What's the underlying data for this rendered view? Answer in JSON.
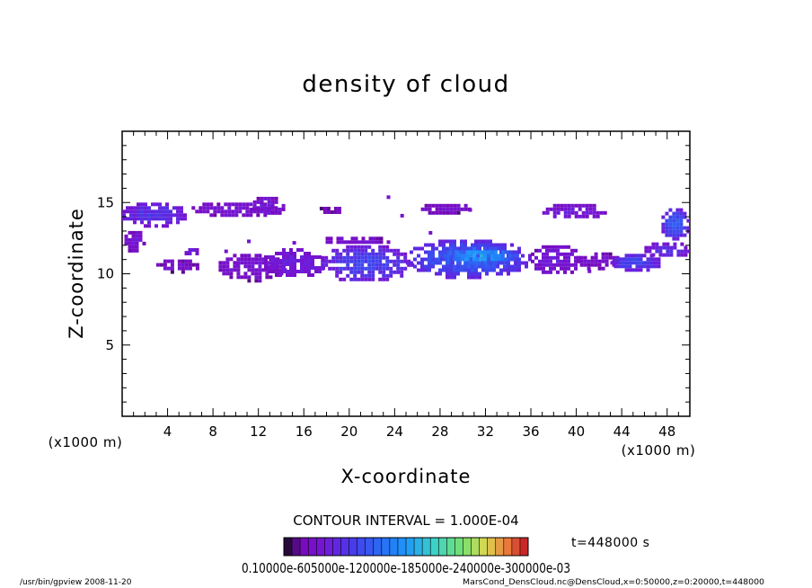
{
  "chart_data": {
    "type": "heatmap",
    "title": "density of cloud",
    "xlabel": "X-coordinate",
    "ylabel": "Z-coordinate",
    "x_unit": "(x1000 m)",
    "xlim": [
      0,
      50
    ],
    "ylim": [
      0,
      20
    ],
    "x_ticks": [
      4,
      8,
      12,
      16,
      20,
      24,
      28,
      32,
      36,
      40,
      44,
      48
    ],
    "y_ticks": [
      5,
      10,
      15
    ],
    "grid": false,
    "contour_interval": "CONTOUR INTERVAL = 1.000E-04",
    "time_label": "t=448000 s",
    "colorbar_labels": "0.10000e-605000e-120000e-185000e-240000e-300000e-03",
    "colorbar_levels": 30,
    "regions": [
      {
        "x": [
          0.0,
          5.8
        ],
        "z": [
          13.3,
          15.0
        ],
        "intensity": 0.22
      },
      {
        "x": [
          5.8,
          14.0
        ],
        "z": [
          14.0,
          15.0
        ],
        "intensity": 0.12
      },
      {
        "x": [
          11.2,
          14.4
        ],
        "z": [
          14.1,
          15.4
        ],
        "intensity": 0.14
      },
      {
        "x": [
          0.2,
          2.0
        ],
        "z": [
          11.5,
          13.0
        ],
        "intensity": 0.12
      },
      {
        "x": [
          3.0,
          6.8
        ],
        "z": [
          10.1,
          11.0
        ],
        "intensity": 0.1
      },
      {
        "x": [
          5.5,
          7.0
        ],
        "z": [
          11.3,
          11.8
        ],
        "intensity": 0.16
      },
      {
        "x": [
          8.5,
          14.5
        ],
        "z": [
          9.5,
          11.4
        ],
        "intensity": 0.12
      },
      {
        "x": [
          12.5,
          18.0
        ],
        "z": [
          9.7,
          11.8
        ],
        "intensity": 0.16
      },
      {
        "x": [
          17.5,
          25.5
        ],
        "z": [
          9.4,
          12.0
        ],
        "intensity": 0.26
      },
      {
        "x": [
          17.6,
          23.5
        ],
        "z": [
          12.0,
          12.6
        ],
        "intensity": 0.12
      },
      {
        "x": [
          25.0,
          36.0
        ],
        "z": [
          9.7,
          12.4
        ],
        "intensity": 0.32
      },
      {
        "x": [
          28.0,
          35.0
        ],
        "z": [
          10.6,
          11.9
        ],
        "intensity": 0.46
      },
      {
        "x": [
          36.0,
          40.5
        ],
        "z": [
          9.9,
          12.0
        ],
        "intensity": 0.14
      },
      {
        "x": [
          40.0,
          44.0
        ],
        "z": [
          10.3,
          11.5
        ],
        "intensity": 0.1
      },
      {
        "x": [
          43.0,
          47.5
        ],
        "z": [
          10.2,
          11.4
        ],
        "intensity": 0.26
      },
      {
        "x": [
          46.0,
          50.0
        ],
        "z": [
          11.1,
          12.2
        ],
        "intensity": 0.2
      },
      {
        "x": [
          47.5,
          50.0
        ],
        "z": [
          12.4,
          14.6
        ],
        "intensity": 0.3
      },
      {
        "x": [
          37.0,
          42.6
        ],
        "z": [
          13.8,
          14.9
        ],
        "intensity": 0.14
      },
      {
        "x": [
          26.0,
          31.0
        ],
        "z": [
          14.2,
          14.9
        ],
        "intensity": 0.1
      },
      {
        "x": [
          17.4,
          19.4
        ],
        "z": [
          14.2,
          14.7
        ],
        "intensity": 0.08
      }
    ]
  },
  "footer": {
    "left": "/usr/bin/gpview   2008-11-20",
    "right": "MarsCond_DensCloud.nc@DensCloud,x=0:50000,z=0:20000,t=448000"
  }
}
